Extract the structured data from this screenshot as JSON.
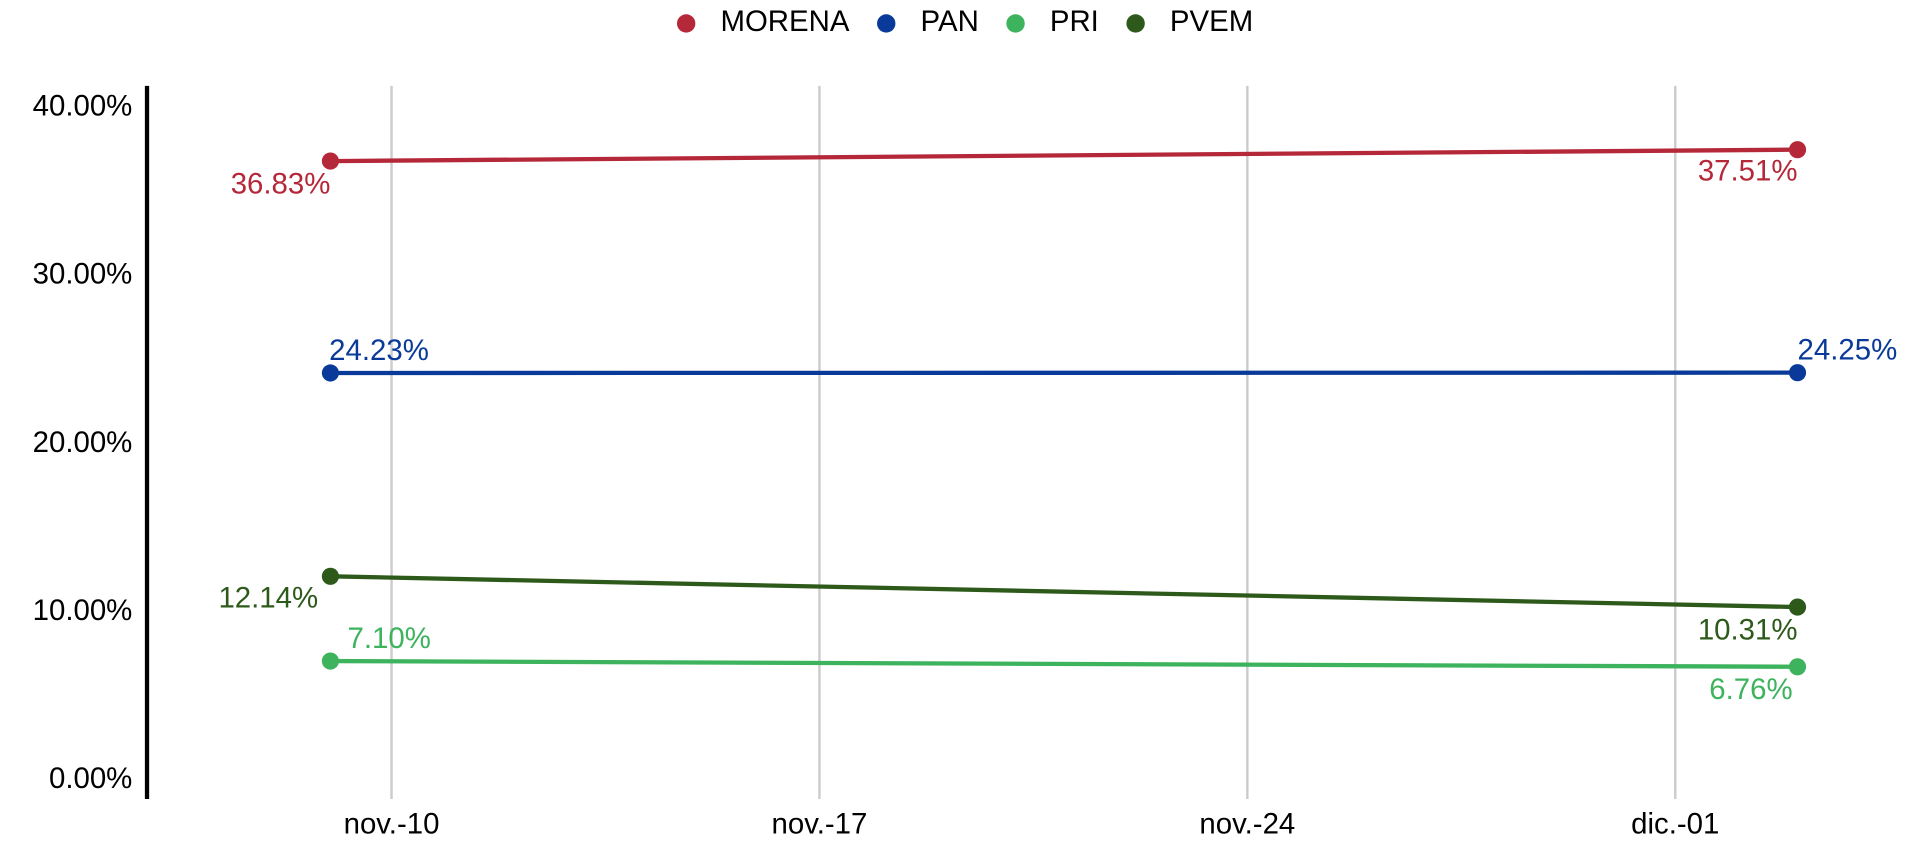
{
  "chart_data": {
    "type": "line",
    "x": [
      "11-09",
      "12-03"
    ],
    "xlim": [
      "11-06",
      "12-05"
    ],
    "xticks": [
      {
        "value": "11-10",
        "label": "nov.-10"
      },
      {
        "value": "11-17",
        "label": "nov.-17"
      },
      {
        "value": "11-24",
        "label": "nov.-24"
      },
      {
        "value": "12-01",
        "label": "dic.-01"
      }
    ],
    "ylim": [
      -1.1,
      41.3
    ],
    "yticks": [
      {
        "value": 0,
        "label": "0.00%"
      },
      {
        "value": 10,
        "label": "10.00%"
      },
      {
        "value": 20,
        "label": "20.00%"
      },
      {
        "value": 30,
        "label": "30.00%"
      },
      {
        "value": 40,
        "label": "40.00%"
      }
    ],
    "grid": "x",
    "legend": "top",
    "series": [
      {
        "name": "MORENA",
        "color": "#b5283a",
        "values": [
          36.83,
          37.51
        ],
        "value_labels": [
          "36.83%",
          "37.51%"
        ]
      },
      {
        "name": "PAN",
        "color": "#0a3a99",
        "values": [
          24.23,
          24.25
        ],
        "value_labels": [
          "24.23%",
          "24.25%"
        ]
      },
      {
        "name": "PRI",
        "color": "#3cb35c",
        "values": [
          7.1,
          6.76
        ],
        "value_labels": [
          "7.10%",
          "6.76%"
        ]
      },
      {
        "name": "PVEM",
        "color": "#2d5a1b",
        "values": [
          12.14,
          10.31
        ],
        "value_labels": [
          "12.14%",
          "10.31%"
        ]
      }
    ]
  }
}
